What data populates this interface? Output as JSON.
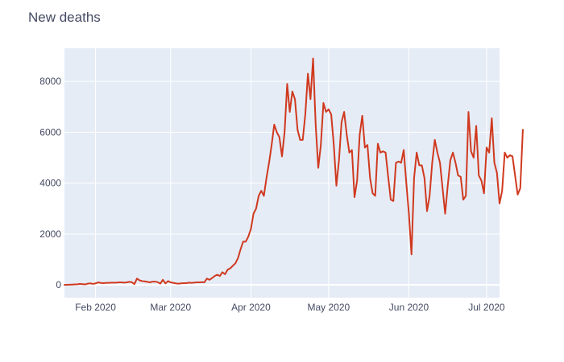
{
  "chart_data": {
    "type": "line",
    "title": "New deaths",
    "xlabel": "",
    "ylabel": "",
    "x_start": "2020-01-20",
    "x_end": "2020-07-06",
    "xlim": [
      "2020-01-20",
      "2020-07-06"
    ],
    "ylim": [
      -500,
      9300
    ],
    "x_ticks": [
      {
        "label": "Feb 2020",
        "date": "2020-02-01"
      },
      {
        "label": "Mar 2020",
        "date": "2020-03-01"
      },
      {
        "label": "Apr 2020",
        "date": "2020-04-01"
      },
      {
        "label": "May 2020",
        "date": "2020-05-01"
      },
      {
        "label": "Jun 2020",
        "date": "2020-06-01"
      },
      {
        "label": "Jul 2020",
        "date": "2020-07-01"
      }
    ],
    "y_ticks": [
      {
        "label": "0",
        "value": 0
      },
      {
        "label": "2000",
        "value": 2000
      },
      {
        "label": "4000",
        "value": 4000
      },
      {
        "label": "6000",
        "value": 6000
      },
      {
        "label": "8000",
        "value": 8000
      }
    ],
    "grid": true,
    "legend": "none",
    "colors": {
      "line": "#d0391f",
      "plot_background": "#e5ecf6",
      "grid": "#ffffff",
      "text": "#444a63"
    },
    "series": [
      {
        "values": [
          0,
          5,
          10,
          15,
          20,
          25,
          40,
          30,
          20,
          50,
          60,
          40,
          60,
          100,
          80,
          70,
          80,
          80,
          90,
          90,
          90,
          100,
          100,
          90,
          100,
          120,
          110,
          30,
          250,
          180,
          150,
          140,
          120,
          100,
          130,
          130,
          110,
          50,
          200,
          60,
          150,
          100,
          80,
          60,
          50,
          60,
          70,
          70,
          90,
          80,
          90,
          100,
          100,
          110,
          100,
          250,
          200,
          270,
          350,
          400,
          350,
          500,
          420,
          600,
          650,
          750,
          850,
          1050,
          1400,
          1700,
          1700,
          1900,
          2200,
          2800,
          3000,
          3500,
          3700,
          3500,
          4200,
          4800,
          5500,
          6300,
          6000,
          5800,
          5050,
          6000,
          7900,
          6800,
          7600,
          7300,
          6100,
          5700,
          5700,
          6700,
          8300,
          7300,
          8900,
          6300,
          4600,
          5500,
          7150,
          6800,
          6900,
          6700,
          5500,
          3900,
          4900,
          6400,
          6800,
          5900,
          5200,
          5300,
          3450,
          4100,
          5900,
          6650,
          5400,
          5500,
          4200,
          3600,
          3500,
          5550,
          5200,
          5250,
          5200,
          4250,
          3350,
          3300,
          4800,
          4850,
          4800,
          5300,
          4000,
          2800,
          1200,
          4200,
          5200,
          4700,
          4700,
          4200,
          2900,
          3500,
          4800,
          5700,
          5200,
          4800,
          3800,
          2800,
          3900,
          4900,
          5200,
          4800,
          4300,
          4250,
          3350,
          3500,
          6800,
          5250,
          5000,
          6250,
          4300,
          4100,
          3600,
          5400,
          5200,
          6550,
          4800,
          4400,
          3200,
          3700,
          5200,
          5000,
          5100,
          5050,
          4300,
          3550,
          3800,
          6100
        ]
      }
    ]
  }
}
